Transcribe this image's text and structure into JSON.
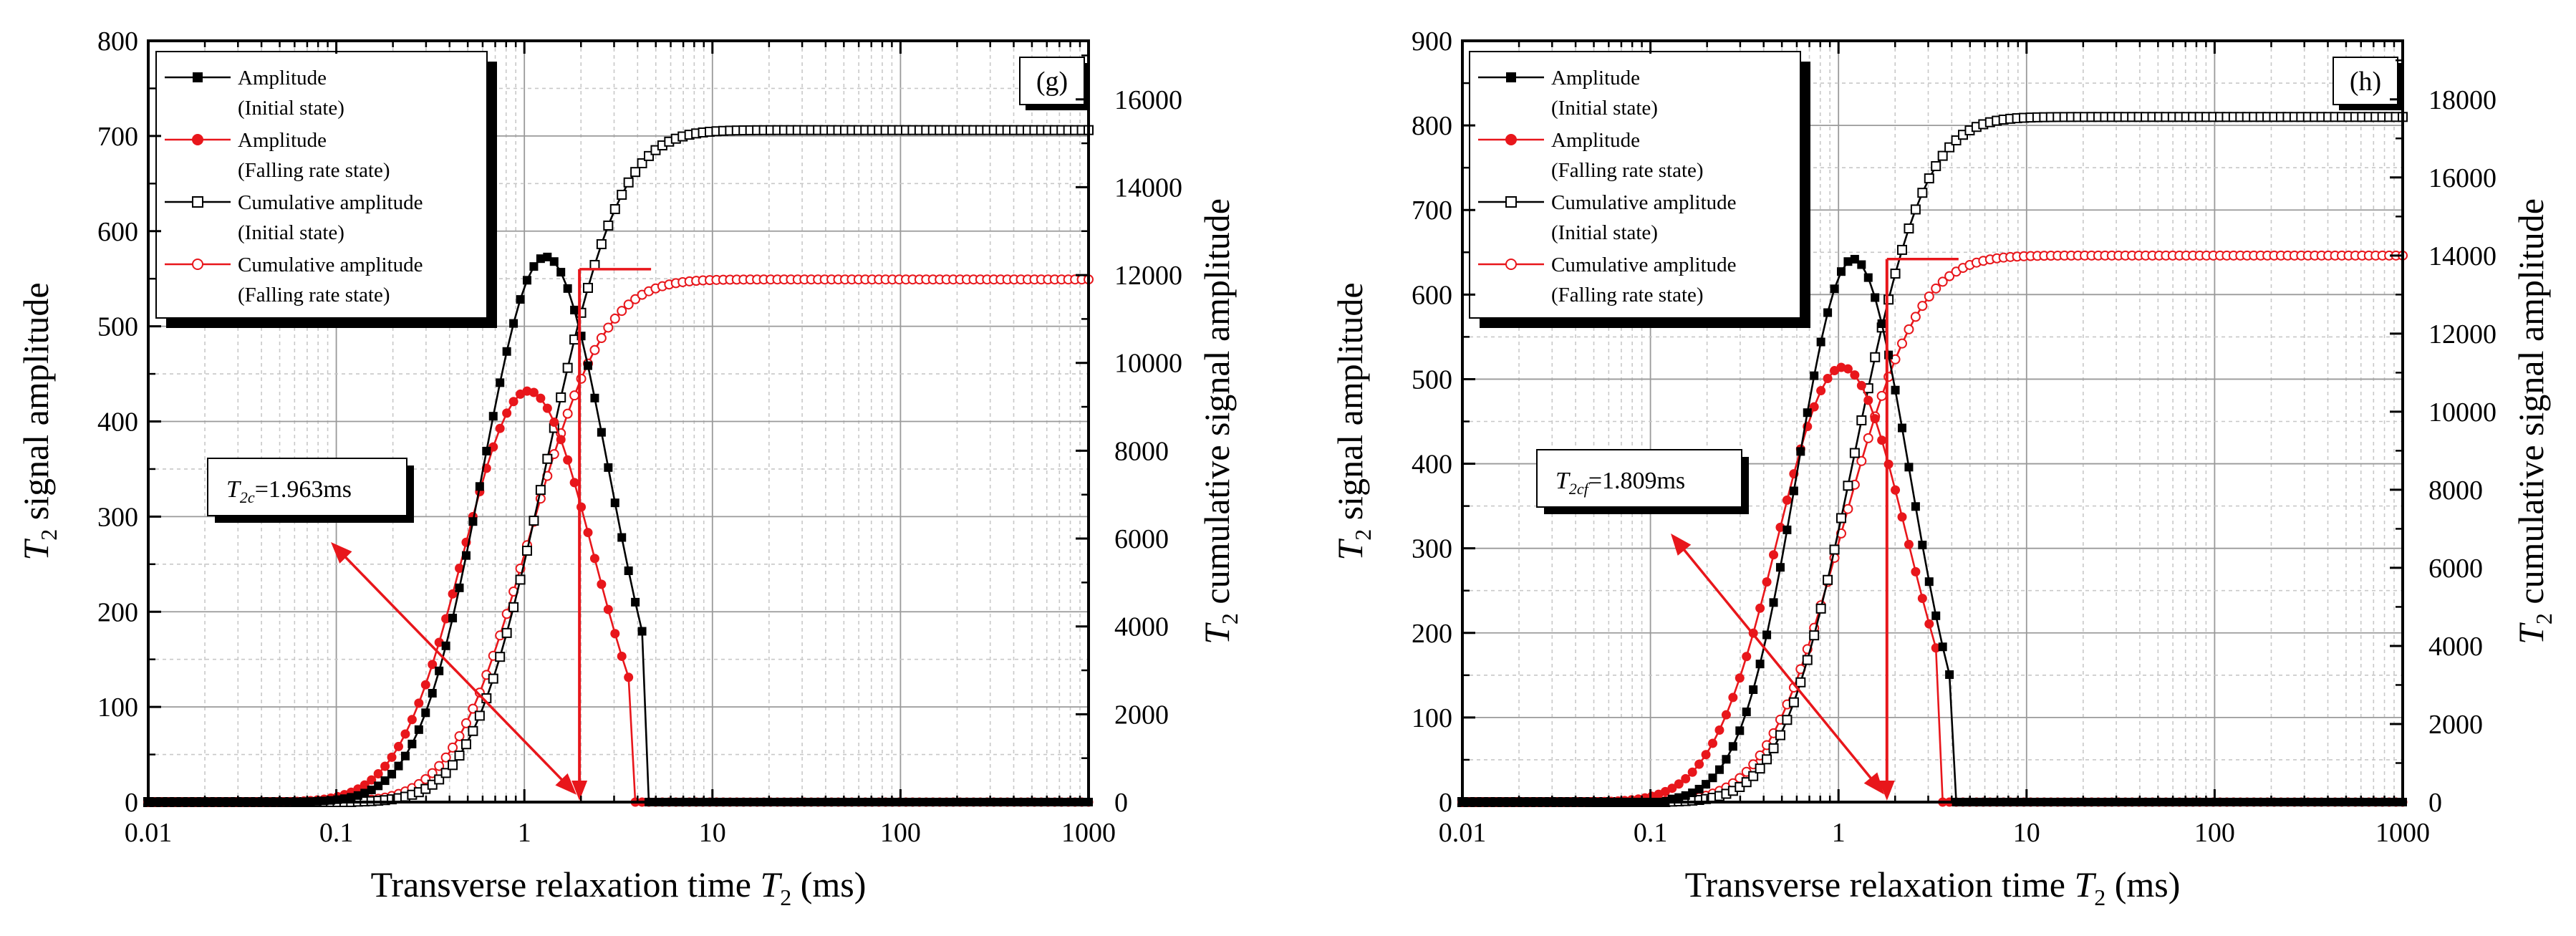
{
  "chart_data": [
    {
      "panel_label": "(g)",
      "type": "line",
      "xscale": "log",
      "xlim": [
        0.01,
        1000
      ],
      "x_ticks": [
        "0.01",
        "0.1",
        "1",
        "10",
        "100",
        "1000"
      ],
      "xlabel": {
        "prefix": "Transverse relaxation time ",
        "sym": "T",
        "sub": "2",
        "suffix": " (ms)"
      },
      "ylabel_left": {
        "sym": "T",
        "sub": "2",
        "suffix": " signal amplitude"
      },
      "ylabel_right": {
        "sym": "T",
        "sub": "2",
        "suffix": " cumulative signal amplitude"
      },
      "ylim_left": [
        0,
        800
      ],
      "y_ticks_left": [
        0,
        100,
        200,
        300,
        400,
        500,
        600,
        700,
        800
      ],
      "ylim_right": [
        0,
        17333
      ],
      "y_ticks_right": [
        0,
        2000,
        4000,
        6000,
        8000,
        10000,
        12000,
        14000,
        16000
      ],
      "grid": true,
      "legend": [
        {
          "line1": "Amplitude",
          "line2": "(Initial state)",
          "color": "#000000",
          "marker": "filled-square"
        },
        {
          "line1": "Amplitude",
          "line2": "(Falling rate state)",
          "color": "#e8161b",
          "marker": "filled-circle"
        },
        {
          "line1": "Cumulative amplitude",
          "line2": "(Initial state)",
          "color": "#000000",
          "marker": "open-square"
        },
        {
          "line1": "Cumulative amplitude",
          "line2": "(Falling rate state)",
          "color": "#e8161b",
          "marker": "open-circle"
        }
      ],
      "legend_position": "top-left",
      "series": [
        {
          "name": "Amplitude (Initial state)",
          "axis": "left",
          "kind": "bell",
          "peak_x": 1.3,
          "peak_y": 573,
          "width_decades": 0.336,
          "start_x": 0.015,
          "end_x": 4.5,
          "color": "#000000",
          "marker": "filled-square"
        },
        {
          "name": "Amplitude (Falling rate state)",
          "axis": "left",
          "kind": "bell",
          "peak_x": 1.05,
          "peak_y": 432,
          "width_decades": 0.345,
          "start_x": 0.01,
          "end_x": 3.8,
          "color": "#e8161b",
          "marker": "filled-circle"
        },
        {
          "name": "Cumulative amplitude (Initial state)",
          "axis": "right",
          "kind": "cumulative",
          "center_x": 1.3,
          "final_y": 15300,
          "width_decades": 0.31,
          "start_x": 0.12,
          "end_x": 1000,
          "color": "#000000",
          "marker": "open-square"
        },
        {
          "name": "Cumulative amplitude (Falling rate state)",
          "axis": "right",
          "kind": "cumulative",
          "center_x": 1.05,
          "final_y": 11900,
          "width_decades": 0.32,
          "start_x": 0.01,
          "end_x": 1000,
          "color": "#e8161b",
          "marker": "open-circle"
        }
      ],
      "annotation": {
        "sym": "T",
        "sub": "2c",
        "value": "=1.963ms",
        "cutoff_x": 1.963,
        "cutoff_y": 560
      }
    },
    {
      "panel_label": "(h)",
      "type": "line",
      "xscale": "log",
      "xlim": [
        0.01,
        1000
      ],
      "x_ticks": [
        "0.01",
        "0.1",
        "1",
        "10",
        "100",
        "1000"
      ],
      "xlabel": {
        "prefix": "Transverse relaxation time ",
        "sym": "T",
        "sub": "2",
        "suffix": " (ms)"
      },
      "ylabel_left": {
        "sym": "T",
        "sub": "2",
        "suffix": " signal amplitude"
      },
      "ylabel_right": {
        "sym": "T",
        "sub": "2",
        "suffix": " cumulative signal amplitude"
      },
      "ylim_left": [
        0,
        900
      ],
      "y_ticks_left": [
        0,
        100,
        200,
        300,
        400,
        500,
        600,
        700,
        800,
        900
      ],
      "ylim_right": [
        0,
        19500
      ],
      "y_ticks_right": [
        0,
        2000,
        4000,
        6000,
        8000,
        10000,
        12000,
        14000,
        16000,
        18000
      ],
      "grid": true,
      "legend": [
        {
          "line1": "Amplitude",
          "line2": "(Initial state)",
          "color": "#000000",
          "marker": "filled-square"
        },
        {
          "line1": "Amplitude",
          "line2": "(Falling rate state)",
          "color": "#e8161b",
          "marker": "filled-circle"
        },
        {
          "line1": "Cumulative amplitude",
          "line2": "(Initial state)",
          "color": "#000000",
          "marker": "open-square"
        },
        {
          "line1": "Cumulative amplitude",
          "line2": "(Falling rate state)",
          "color": "#e8161b",
          "marker": "open-circle"
        }
      ],
      "legend_position": "top-left",
      "series": [
        {
          "name": "Amplitude (Initial state)",
          "axis": "left",
          "kind": "bell",
          "peak_x": 1.2,
          "peak_y": 642,
          "width_decades": 0.3,
          "start_x": 0.12,
          "end_x": 4.0,
          "color": "#000000",
          "marker": "filled-square"
        },
        {
          "name": "Amplitude (Falling rate state)",
          "axis": "left",
          "kind": "bell",
          "peak_x": 1.05,
          "peak_y": 514,
          "width_decades": 0.345,
          "start_x": 0.01,
          "end_x": 3.3,
          "color": "#e8161b",
          "marker": "filled-circle"
        },
        {
          "name": "Cumulative amplitude (Initial state)",
          "axis": "right",
          "kind": "cumulative",
          "center_x": 1.2,
          "final_y": 17550,
          "width_decades": 0.3,
          "start_x": 0.12,
          "end_x": 1000,
          "color": "#000000",
          "marker": "open-square"
        },
        {
          "name": "Cumulative amplitude (Falling rate state)",
          "axis": "right",
          "kind": "cumulative",
          "center_x": 1.05,
          "final_y": 14000,
          "width_decades": 0.32,
          "start_x": 0.01,
          "end_x": 1000,
          "color": "#e8161b",
          "marker": "open-circle"
        }
      ],
      "annotation": {
        "sym": "T",
        "sub": "2cf",
        "value": "=1.809ms",
        "cutoff_x": 1.809,
        "cutoff_y": 642
      }
    }
  ]
}
